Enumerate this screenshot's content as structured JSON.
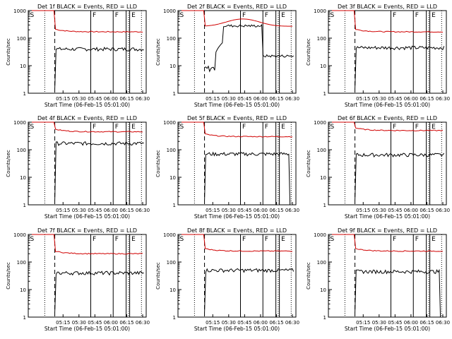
{
  "figure": {
    "xlabel": "Start Time (06-Feb-15 05:01:00)",
    "ylabel": "Counts/sec",
    "xticks": [
      "05:15",
      "05:30",
      "05:45",
      "06:00",
      "06:15",
      "06:30"
    ],
    "yticks": [
      "1",
      "10",
      "100",
      "1000"
    ],
    "colors": {
      "events": "#000000",
      "lld": "#d00000"
    }
  },
  "chart_data": [
    {
      "type": "line",
      "title": "Det 1f BLACK = Events, RED = LLD",
      "markers": [
        "S",
        "F",
        "F",
        "E"
      ],
      "lld_level": 170,
      "events_level": 40,
      "style": "normal"
    },
    {
      "type": "line",
      "title": "Det 2f BLACK = Events, RED = LLD",
      "markers": [
        "S",
        "F",
        "F",
        "E"
      ],
      "lld_level": 450,
      "events_level": 20,
      "style": "det2"
    },
    {
      "type": "line",
      "title": "Det 3f BLACK = Events, RED = LLD",
      "markers": [
        "S",
        "F",
        "F",
        "E"
      ],
      "lld_level": 170,
      "events_level": 45,
      "style": "normal"
    },
    {
      "type": "line",
      "title": "Det 4f BLACK = Events, RED = LLD",
      "markers": [
        "S",
        "F",
        "F",
        "E"
      ],
      "lld_level": 450,
      "events_level": 170,
      "style": "normal"
    },
    {
      "type": "line",
      "title": "Det 5f BLACK = Events, RED = LLD",
      "markers": [
        "S",
        "F",
        "F",
        "E"
      ],
      "lld_level": 300,
      "events_level": 70,
      "style": "dropend"
    },
    {
      "type": "line",
      "title": "Det 6f BLACK = Events, RED = LLD",
      "markers": [
        "S",
        "F",
        "F",
        "E"
      ],
      "lld_level": 500,
      "events_level": 65,
      "style": "normal"
    },
    {
      "type": "line",
      "title": "Det 7f BLACK = Events, RED = LLD",
      "markers": [
        "S",
        "F",
        "F",
        "E"
      ],
      "lld_level": 200,
      "events_level": 40,
      "style": "normal"
    },
    {
      "type": "line",
      "title": "Det 8f BLACK = Events, RED = LLD",
      "markers": [
        "S",
        "F",
        "F",
        "E"
      ],
      "lld_level": 250,
      "events_level": 50,
      "style": "normal"
    },
    {
      "type": "line",
      "title": "Det 9f BLACK = Events, RED = LLD",
      "markers": [
        "S",
        "F",
        "F",
        "E"
      ],
      "lld_level": 250,
      "events_level": 45,
      "style": "dropend"
    }
  ]
}
